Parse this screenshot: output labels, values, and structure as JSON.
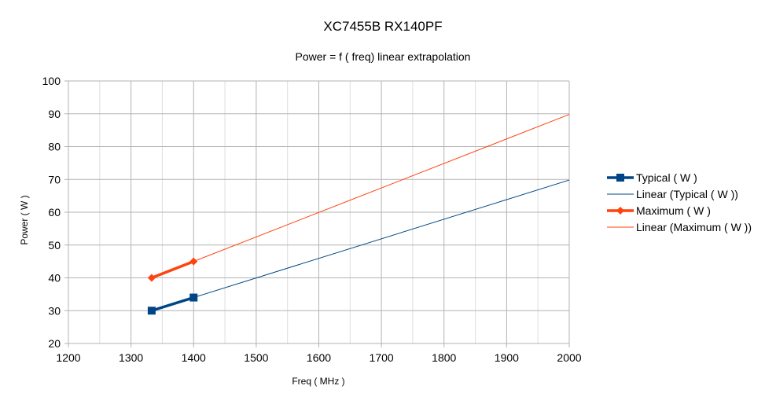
{
  "chart_data": {
    "type": "line",
    "title": "XC7455B RX140PF",
    "subtitle": "Power = f ( freq) linear extrapolation",
    "xlabel": "Freq ( MHz )",
    "ylabel": "Power ( W )",
    "xlim": [
      1200,
      2000
    ],
    "ylim": [
      20,
      100
    ],
    "xticks": [
      1200,
      1300,
      1400,
      1500,
      1600,
      1700,
      1800,
      1900,
      2000
    ],
    "yticks": [
      20,
      30,
      40,
      50,
      60,
      70,
      80,
      90,
      100
    ],
    "grid": true,
    "legend_position": "right",
    "series": [
      {
        "name": "Typical ( W )",
        "color": "#004586",
        "marker": "square",
        "x": [
          1333,
          1400
        ],
        "y": [
          30,
          34
        ]
      },
      {
        "name": "Linear (Typical ( W ))",
        "color": "#004586",
        "trendline": true,
        "x": [
          1400,
          2000
        ],
        "y": [
          34,
          69.8
        ]
      },
      {
        "name": "Maximum ( W )",
        "color": "#ff420e",
        "marker": "diamond",
        "x": [
          1333,
          1400
        ],
        "y": [
          40,
          45
        ]
      },
      {
        "name": "Linear (Maximum ( W ))",
        "color": "#ff420e",
        "trendline": true,
        "x": [
          1400,
          2000
        ],
        "y": [
          45,
          89.8
        ]
      }
    ]
  }
}
